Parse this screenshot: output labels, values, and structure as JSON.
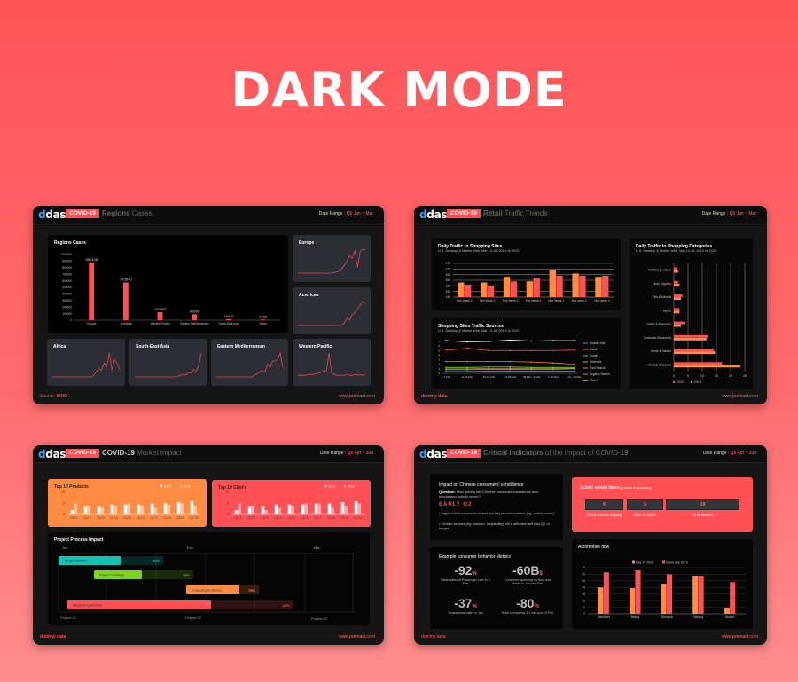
{
  "headline": "DARK MODE",
  "common": {
    "logo": "dashi",
    "badge": "COVID-19",
    "date_label": "Date Range : ",
    "site": "www.premast.com",
    "dummy": "dummy data"
  },
  "colors": {
    "background": "#ff5a5e",
    "card": "#151515",
    "accent": "#ff4f55",
    "orange": "#ff8c42",
    "gray_panel": "#2b2f35"
  },
  "card1": {
    "title_bold": "Regions",
    "title_light": " Cases",
    "quarter": "Q1",
    "range": " Jan ~ Mar",
    "source_label": "Source: ",
    "source": "WHO",
    "main_title": "Regions Cases",
    "spark_titles": [
      "Europe",
      "Americas",
      "Africa",
      "South-East Asia",
      "Eastern Mediterranean",
      "Western Pacific"
    ]
  },
  "card2": {
    "title_bold": "Retail",
    "title_light": " Traffic Trends",
    "quarter": "Q1",
    "range": " Jan ~ Mar",
    "p1_title": "Daily Traffic to Shopping Sites",
    "p1_sub": "U.S. Desktop & Mobile Web, Mar 14-18, 2019 vs 2020",
    "p2_title": "Shopping Sites Traffic Sources",
    "p2_sub": "U.S. Desktop & Mobile Web, Mar 14-18, 2019 vs 2020",
    "p3_title": "Daily Traffic to Shopping Categories",
    "p3_sub": "U.S. Desktop & Mobile Web, Mar 14-18, 2019 vs 2020"
  },
  "card3": {
    "title_bold": "COVID-19",
    "title_light": " Market Impact",
    "quarter": "Q2",
    "range": " Apr ~ Jun",
    "p1_title": "Top 10 Products",
    "p2_title": "Top 10 Clint's",
    "gantt_title": "Project Process Impact"
  },
  "card4": {
    "title_bold": "Critical indicators",
    "title_light": " of the impact of COVID-19",
    "quarter": "Q2",
    "range": " Apr ~ Jun",
    "impact_title": "Impact on Chinese consumers' condidence",
    "question_label": "Question:",
    "question": " How quickly will Chinese consumer condidence and purchasing activity return?",
    "early": "EARLY Q2",
    "bullets": [
      "Lags behind economic restart but has proved resilient (eg. online boom)",
      "Certain sectors (eg. tourism, hospitality) will b affected well into Q2 or longer"
    ],
    "metrics_title": "Example consumer behavior Metrics",
    "metrics": [
      {
        "value": "-92",
        "unit": "%",
        "caption": "Retail sales of Passenger cars in 9 Feb"
      },
      {
        "value": "-60B",
        "unit": "$",
        "caption": "Consumer spending on food and drinks in Jan and Feb"
      },
      {
        "value": "-37",
        "unit": "%",
        "caption": "Smartphone sales in Jan"
      },
      {
        "value": "-80",
        "unit": "%",
        "caption": "Hotel occupancy 3H Jan and 1H Feb"
      }
    ],
    "school_title": "School restart dates",
    "school_sub": " (number of provinces)",
    "school": [
      {
        "value": "8",
        "caption": "Online lessons ongoing"
      },
      {
        "value": "5",
        "caption": "After 15 March"
      },
      {
        "value": "18",
        "caption": "To be decided"
      }
    ],
    "auto_title": "Automobile flow"
  },
  "chart_data": [
    {
      "id": "regions",
      "type": "bar",
      "categories": [
        "Europe",
        "Americas",
        "Western Pacific",
        "Eastern Mediterranean",
        "South-East Asia",
        "Africa"
      ],
      "values": [
        880106,
        573940,
        120965,
        90699,
        16045,
        9728
      ],
      "data_labels": [
        "880106",
        "573940",
        "120965",
        "90699",
        "16045",
        "9728"
      ],
      "ylim": [
        0,
        1000000
      ],
      "ystep": 100000,
      "color": "#ff5055"
    },
    {
      "id": "sparks",
      "type": "line",
      "series": [
        {
          "name": "Europe",
          "values": [
            0,
            0,
            0,
            0,
            0,
            0,
            0,
            0,
            0,
            0,
            0,
            0,
            0,
            0,
            1,
            2,
            4,
            8,
            14,
            22,
            30,
            26,
            40,
            10,
            38,
            42,
            40
          ]
        },
        {
          "name": "Americas",
          "values": [
            0,
            0,
            0,
            0,
            0,
            0,
            0,
            0,
            0,
            0,
            0,
            0,
            0,
            0,
            0,
            0,
            0,
            1,
            3,
            8,
            6,
            12,
            14,
            18,
            22,
            26,
            24
          ]
        },
        {
          "name": "Africa",
          "values": [
            0,
            0,
            0,
            0,
            0,
            0,
            0,
            0,
            0,
            0,
            0,
            0,
            0,
            0,
            0,
            0,
            1,
            3,
            5,
            4,
            8,
            6,
            14,
            4,
            10,
            8,
            4
          ]
        },
        {
          "name": "South-East Asia",
          "values": [
            0,
            0,
            0,
            0,
            0,
            0,
            0,
            0,
            0,
            0,
            0,
            0,
            0,
            0,
            0,
            0,
            0,
            1,
            2,
            3,
            2,
            5,
            4,
            8,
            6,
            12,
            26
          ]
        },
        {
          "name": "Eastern Mediterranean",
          "values": [
            0,
            0,
            0,
            0,
            0,
            0,
            0,
            0,
            0,
            0,
            0,
            0,
            0,
            0,
            0,
            1,
            2,
            3,
            4,
            3,
            8,
            6,
            10,
            10,
            11,
            15,
            6
          ]
        },
        {
          "name": "Western Pacific",
          "values": [
            2,
            2,
            2,
            2,
            3,
            3,
            3,
            4,
            5,
            6,
            8,
            6,
            30,
            6,
            3,
            2,
            2,
            2,
            2,
            3,
            2,
            2,
            3,
            2,
            3,
            2,
            3
          ]
        }
      ]
    },
    {
      "id": "traffic_sites",
      "type": "bar",
      "categories": [
        "Feb Week 1",
        "Feb Week 2",
        "Feb Week 3",
        "Feb Week 4",
        "Mar Week 1",
        "Mar week 2",
        "Mar week 3"
      ],
      "series": [
        {
          "values": [
            158,
            158,
            163,
            159,
            169,
            166,
            163
          ],
          "color": "#ff8c42"
        },
        {
          "values": [
            156,
            155,
            159,
            162,
            164,
            164,
            164
          ],
          "color": "#ff5055"
        }
      ],
      "ylim": [
        145,
        175
      ],
      "ystep": 5,
      "grid": true
    },
    {
      "id": "traffic_sources",
      "type": "line",
      "x": [
        "1-7 Feb",
        "8-14 Feb",
        "15-21 Feb",
        "22-28 Feb",
        "29 Feb - 6 Mar",
        "7-13 Mar",
        "14 - 18 Mar"
      ],
      "ylim": [
        0,
        7
      ],
      "ystep": 1,
      "legend": "right",
      "series": [
        {
          "name": "Display Ads",
          "color": "#4a8fd8",
          "values": [
            0.4,
            0.4,
            0.5,
            0.5,
            0.5,
            0.5,
            0.5
          ]
        },
        {
          "name": "Email",
          "color": "#ff8c42",
          "values": [
            0.8,
            0.8,
            0.9,
            0.9,
            0.9,
            0.9,
            1.0
          ]
        },
        {
          "name": "Social",
          "color": "#18c7b4",
          "values": [
            1.0,
            1.0,
            1.1,
            1.1,
            1.1,
            1.1,
            1.1
          ]
        },
        {
          "name": "Referrals",
          "color": "#7ed321",
          "values": [
            1.3,
            1.3,
            1.4,
            1.4,
            1.3,
            1.3,
            1.3
          ]
        },
        {
          "name": "Paid Search",
          "color": "#ff7a30",
          "values": [
            2.6,
            2.6,
            2.6,
            2.6,
            2.5,
            2.3,
            2.0
          ]
        },
        {
          "name": "Organic Search",
          "color": "#ff4f55",
          "values": [
            5.1,
            5.5,
            5.0,
            5.0,
            5.0,
            5.0,
            5.1
          ]
        },
        {
          "name": "Direct",
          "color": "#ffffff",
          "values": [
            7.2,
            6.9,
            7.0,
            7.3,
            7.1,
            7.2,
            7.2
          ]
        }
      ]
    },
    {
      "id": "traffic_categories",
      "type": "bar",
      "orientation": "horizontal",
      "categories": [
        "Hobbies & Leisure",
        "Auto Supplies",
        "Pets & Animals",
        "Sports",
        "Health & Pharmacy",
        "Consumer Electronics",
        "Home & Garden",
        "Lifestyle & Apparel"
      ],
      "series": [
        {
          "name": "2020",
          "color": "#ff5055",
          "values": [
            1,
            1.5,
            3,
            2,
            4,
            12,
            14,
            17
          ]
        },
        {
          "name": "2019",
          "color": "#ff8c42",
          "values": [
            1.5,
            2,
            2.5,
            2,
            2.5,
            11.5,
            14.5,
            23.5
          ]
        }
      ],
      "xlim": [
        0,
        25
      ],
      "xstep": 5,
      "legend": "bottom",
      "grid": true
    },
    {
      "id": "top_products",
      "type": "bar",
      "categories": [
        "CU 1",
        "CU 2",
        "CU 3",
        "CU 4",
        "CU 5",
        "CU 6",
        "CU 7",
        "CU 8",
        "CU 9",
        "CU 10"
      ],
      "series": [
        {
          "name": "2019",
          "color": "#ffffff",
          "values": [
            2,
            3.5,
            3.5,
            4.5,
            4.5,
            4.5,
            5,
            5.2,
            5.5,
            6
          ]
        },
        {
          "name": "2020",
          "color": "#ffc49e",
          "values": [
            5,
            4,
            3,
            4,
            5,
            4,
            3,
            4.5,
            5,
            4
          ]
        }
      ],
      "ylim": [
        0,
        10
      ],
      "ystep": 5,
      "legend": "top-right"
    },
    {
      "id": "top_clients",
      "type": "bar",
      "categories": [
        "CU 1",
        "CU 2",
        "CU 3",
        "CU 4",
        "CU 5",
        "CU 6",
        "CU 7",
        "CU 8",
        "CU 9",
        "CU 10"
      ],
      "series": [
        {
          "name": "2019",
          "color": "#ffffff",
          "values": [
            2,
            3.5,
            3.5,
            4.5,
            4.5,
            4.5,
            5,
            5,
            5.5,
            6
          ]
        },
        {
          "name": "2020",
          "color": "#ffa5a8",
          "values": [
            5,
            4,
            2,
            3,
            4,
            5,
            5,
            3,
            4,
            5
          ]
        }
      ],
      "ylim": [
        0,
        10
      ],
      "ystep": 5,
      "legend": "top-right"
    },
    {
      "id": "gantt",
      "type": "table",
      "months": [
        "Jan",
        "Feb",
        "Mar"
      ],
      "tasks": [
        {
          "name": "Target Ideation",
          "progress": "60%",
          "color": "#12c4b4"
        },
        {
          "name": "Project Building",
          "progress": "48%",
          "color": "#7ed321"
        },
        {
          "name": "Engaging Audience",
          "progress": "75%",
          "color": "#ff8c42"
        },
        {
          "name": "Measuring Results",
          "progress": "60%",
          "color": "#ff5055"
        }
      ],
      "footer": [
        "Project 01",
        "Project 02",
        "Project 02"
      ]
    },
    {
      "id": "automobile",
      "type": "bar",
      "categories": [
        "Shenzhen",
        "Beijing",
        "Shanghai",
        "Nanjing",
        "Wuhan"
      ],
      "series": [
        {
          "name": "Day 14 2020",
          "color": "#ff8c42",
          "values": [
            40,
            39,
            45,
            57,
            8
          ]
        },
        {
          "name": "Same day 2019",
          "color": "#ff5055",
          "values": [
            63,
            66,
            60,
            57,
            48
          ]
        }
      ],
      "ylim": [
        0,
        70
      ],
      "ystep": 10,
      "legend": "top",
      "grid": true
    }
  ]
}
